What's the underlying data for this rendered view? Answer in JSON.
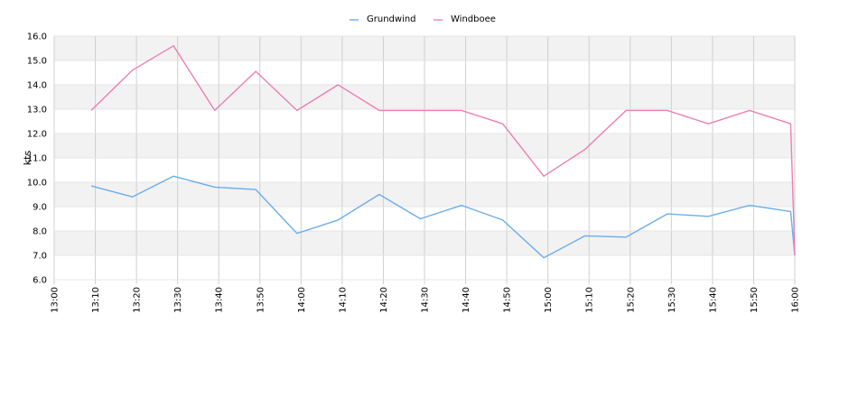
{
  "chart_data": {
    "type": "line",
    "title": "",
    "xlabel": "",
    "ylabel": "kts",
    "x": [
      "13:00",
      "13:10",
      "13:20",
      "13:30",
      "13:40",
      "13:50",
      "14:00",
      "14:10",
      "14:20",
      "14:30",
      "14:40",
      "14:50",
      "15:00",
      "15:10",
      "15:20",
      "15:30",
      "15:40",
      "15:50",
      "16:00"
    ],
    "xlim": [
      "13:00",
      "16:00"
    ],
    "ylim": [
      6.0,
      16.0
    ],
    "yticks": [
      "6.0",
      "7.0",
      "8.0",
      "9.0",
      "10.0",
      "11.0",
      "12.0",
      "13.0",
      "14.0",
      "15.0",
      "16.0"
    ],
    "grid": true,
    "legend_position": "top-center",
    "series": [
      {
        "name": "Grundwind",
        "color": "#6aaeec",
        "points": [
          [
            "13:09",
            9.85
          ],
          [
            "13:19",
            9.4
          ],
          [
            "13:29",
            10.25
          ],
          [
            "13:39",
            9.8
          ],
          [
            "13:49",
            9.7
          ],
          [
            "13:59",
            7.9
          ],
          [
            "14:09",
            8.45
          ],
          [
            "14:19",
            9.5
          ],
          [
            "14:29",
            8.5
          ],
          [
            "14:39",
            9.05
          ],
          [
            "14:49",
            8.45
          ],
          [
            "14:59",
            6.9
          ],
          [
            "15:09",
            7.8
          ],
          [
            "15:19",
            7.75
          ],
          [
            "15:29",
            8.7
          ],
          [
            "15:39",
            8.6
          ],
          [
            "15:49",
            9.05
          ],
          [
            "15:59",
            8.8
          ],
          [
            "16:00",
            7.0
          ]
        ]
      },
      {
        "name": "Windboee",
        "color": "#ec7fb5",
        "points": [
          [
            "13:09",
            12.95
          ],
          [
            "13:19",
            14.6
          ],
          [
            "13:29",
            15.6
          ],
          [
            "13:39",
            12.95
          ],
          [
            "13:49",
            14.55
          ],
          [
            "13:59",
            12.95
          ],
          [
            "14:09",
            14.0
          ],
          [
            "14:19",
            12.95
          ],
          [
            "14:29",
            12.95
          ],
          [
            "14:39",
            12.95
          ],
          [
            "14:49",
            12.4
          ],
          [
            "14:59",
            10.25
          ],
          [
            "15:09",
            11.35
          ],
          [
            "15:19",
            12.95
          ],
          [
            "15:29",
            12.95
          ],
          [
            "15:39",
            12.4
          ],
          [
            "15:49",
            12.95
          ],
          [
            "15:59",
            12.4
          ],
          [
            "16:00",
            7.0
          ]
        ]
      }
    ]
  }
}
